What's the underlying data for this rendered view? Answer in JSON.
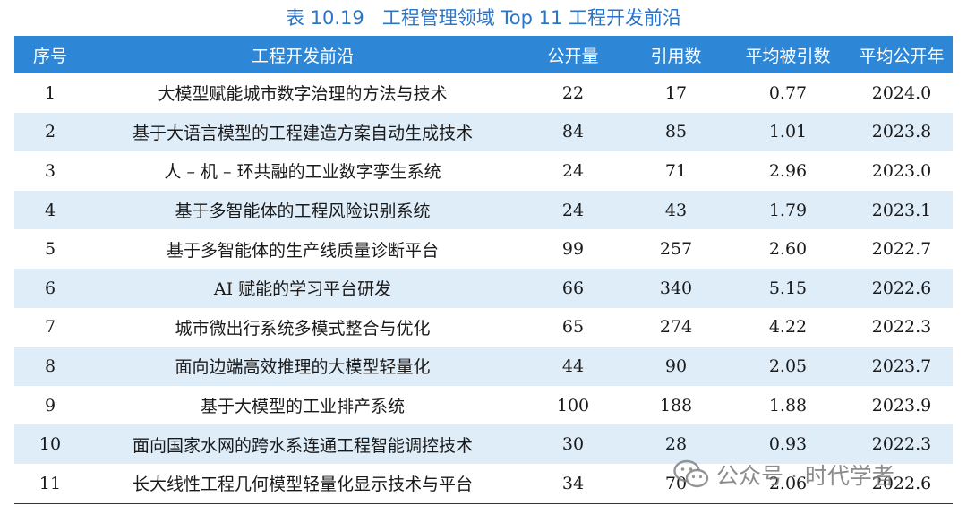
{
  "caption": "表 10.19   工程管理领域 Top 11 工程开发前沿",
  "table": {
    "headers": [
      "序号",
      "工程开发前沿",
      "公开量",
      "引用数",
      "平均被引数",
      "平均公开年"
    ],
    "rows": [
      [
        "1",
        "大模型赋能城市数字治理的方法与技术",
        "22",
        "17",
        "0.77",
        "2024.0"
      ],
      [
        "2",
        "基于大语言模型的工程建造方案自动生成技术",
        "84",
        "85",
        "1.01",
        "2023.8"
      ],
      [
        "3",
        "人 – 机 – 环共融的工业数字孪生系统",
        "24",
        "71",
        "2.96",
        "2023.0"
      ],
      [
        "4",
        "基于多智能体的工程风险识别系统",
        "24",
        "43",
        "1.79",
        "2023.1"
      ],
      [
        "5",
        "基于多智能体的生产线质量诊断平台",
        "99",
        "257",
        "2.60",
        "2022.7"
      ],
      [
        "6",
        "AI 赋能的学习平台研发",
        "66",
        "340",
        "5.15",
        "2022.6"
      ],
      [
        "7",
        "城市微出行系统多模式整合与优化",
        "65",
        "274",
        "4.22",
        "2022.3"
      ],
      [
        "8",
        "面向边端高效推理的大模型轻量化",
        "44",
        "90",
        "2.05",
        "2023.7"
      ],
      [
        "9",
        "基于大模型的工业排产系统",
        "100",
        "188",
        "1.88",
        "2023.9"
      ],
      [
        "10",
        "面向国家水网的跨水系连通工程智能调控技术",
        "30",
        "28",
        "0.93",
        "2022.3"
      ],
      [
        "11",
        "长大线性工程几何模型轻量化显示技术与平台",
        "34",
        "70",
        "2.06",
        "2022.6"
      ]
    ]
  },
  "watermark": {
    "icon": "wechat-icon",
    "text": "公众号 · 时代学者"
  }
}
